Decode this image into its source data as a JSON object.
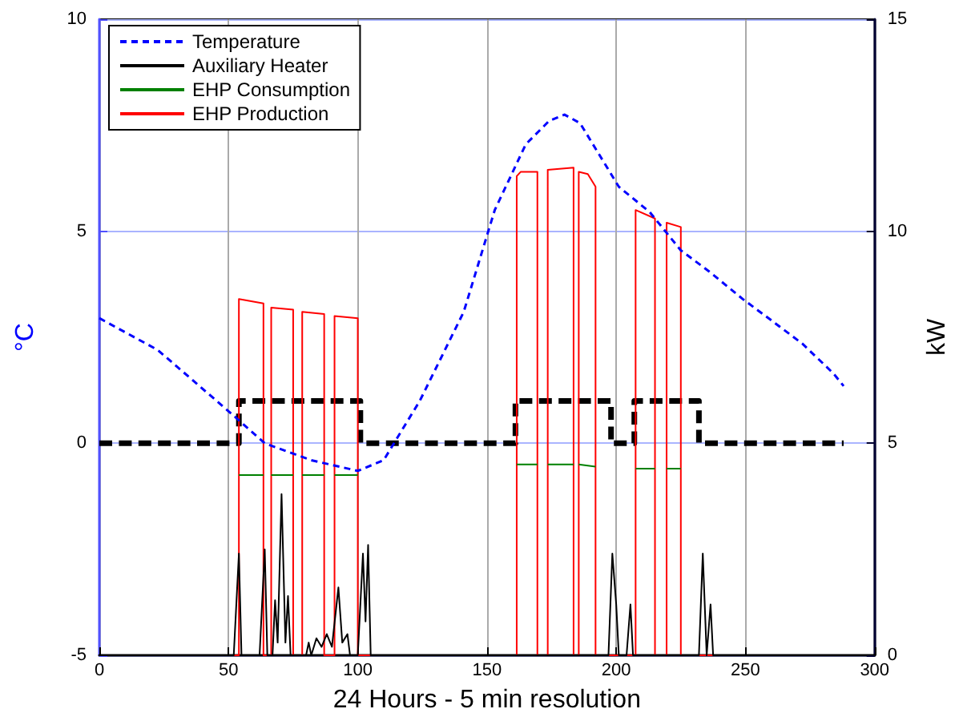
{
  "chart_data": {
    "type": "line",
    "xlabel": "24 Hours - 5 min resolution",
    "ylabel": "°C",
    "y2label": "kW",
    "xlim": [
      0,
      300
    ],
    "xticks": [
      0,
      50,
      100,
      150,
      200,
      250,
      300
    ],
    "ylim": [
      -5,
      10
    ],
    "yticks": [
      -5,
      0,
      5,
      10
    ],
    "y2lim": [
      0,
      15
    ],
    "y2ticks": [
      0,
      5,
      10,
      15
    ],
    "grid": true,
    "legend": "top left",
    "marker": "none",
    "series": [
      {
        "name": "Temperature",
        "color": "#0000ff",
        "axis": "y",
        "line_style": "dashed",
        "x": [
          0,
          22.6,
          52,
          64,
          82,
          100,
          110,
          124,
          141,
          153,
          165,
          174,
          180,
          186,
          192,
          201,
          213,
          225,
          236,
          249,
          260,
          272,
          284,
          288
        ],
        "values": [
          2.95,
          2.2,
          0.65,
          0.0,
          -0.4,
          -0.65,
          -0.4,
          1.0,
          3.1,
          5.5,
          7.05,
          7.6,
          7.75,
          7.55,
          6.95,
          6.05,
          5.45,
          4.55,
          4.05,
          3.4,
          2.9,
          2.35,
          1.65,
          1.35
        ]
      },
      {
        "name": "Auxiliary Heater",
        "color": "#000000",
        "axis": "y2",
        "line_style": "solid",
        "x": [
          0,
          52,
          54,
          55,
          62,
          64,
          65,
          67,
          68,
          69,
          70.5,
          72,
          73,
          74,
          80,
          81,
          82,
          84,
          86,
          88,
          90,
          92.5,
          94,
          96,
          97,
          100,
          102,
          103,
          104,
          105,
          197,
          198.5,
          200,
          201,
          204,
          205.5,
          206.5,
          232,
          233.5,
          235,
          236.5,
          237.5,
          288
        ],
        "values": [
          0,
          0,
          2.4,
          0,
          0,
          2.5,
          0,
          0,
          1.3,
          0.3,
          3.8,
          0.3,
          1.4,
          0,
          0,
          0.3,
          0,
          0.4,
          0.2,
          0.5,
          0.2,
          1.6,
          0.3,
          0.5,
          0,
          0,
          2.4,
          0.8,
          2.6,
          0,
          0,
          2.4,
          1.2,
          0,
          0,
          1.2,
          0,
          0,
          2.4,
          0,
          1.2,
          0,
          0
        ]
      },
      {
        "name": "EHP Consumption",
        "color": "#008000",
        "axis": "y2",
        "line_style": "solid",
        "x": [
          54,
          63.5,
          64,
          66.5,
          75,
          76,
          78.5,
          87,
          88,
          91,
          100,
          150,
          161.5,
          169.5,
          170,
          173.5,
          183.5,
          184,
          185.5,
          192,
          200,
          207.5,
          215,
          216,
          219.5,
          225
        ],
        "values": [
          4.25,
          4.25,
          null,
          4.25,
          4.25,
          null,
          4.25,
          4.25,
          null,
          4.25,
          4.25,
          null,
          4.5,
          4.5,
          null,
          4.5,
          4.5,
          null,
          4.5,
          4.45,
          null,
          4.4,
          4.4,
          null,
          4.4,
          4.4
        ]
      },
      {
        "name": "EHP Production",
        "color": "#ff0000",
        "axis": "y2",
        "line_style": "solid",
        "x": [
          0,
          54,
          54,
          63.5,
          63.5,
          66.5,
          66.5,
          75,
          75,
          78.5,
          78.5,
          87,
          87,
          91,
          91,
          100,
          100,
          161.5,
          161.5,
          163,
          169.5,
          169.5,
          173.5,
          173.5,
          183.5,
          183.5,
          185.5,
          185.5,
          189,
          192,
          192,
          207.5,
          207.5,
          215,
          215,
          219.5,
          219.5,
          225,
          225,
          288
        ],
        "values": [
          0,
          0,
          8.4,
          8.3,
          0,
          0,
          8.2,
          8.15,
          0,
          0,
          8.1,
          8.05,
          0,
          0,
          8.0,
          7.95,
          0,
          0,
          11.3,
          11.4,
          11.4,
          0,
          0,
          11.45,
          11.5,
          0,
          0,
          11.4,
          11.35,
          11.05,
          0,
          0,
          10.5,
          10.3,
          0,
          0,
          10.2,
          10.1,
          0,
          0
        ]
      },
      {
        "color": "#000000",
        "axis": "y",
        "line_style": "dashed",
        "x": [
          0,
          54,
          54,
          101,
          101,
          161,
          161,
          198,
          198,
          207,
          207,
          232,
          232,
          288
        ],
        "values": [
          0,
          0,
          1,
          1,
          0,
          0,
          1,
          1,
          0,
          0,
          1,
          1,
          0,
          0
        ]
      }
    ]
  }
}
